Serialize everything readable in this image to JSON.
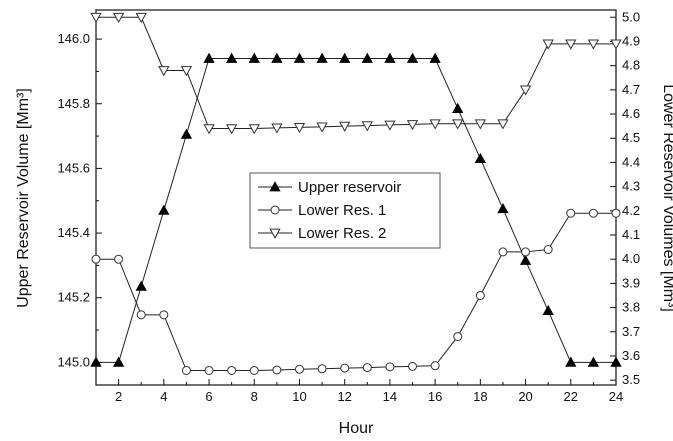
{
  "chart_data": {
    "type": "line",
    "x": [
      1,
      2,
      3,
      4,
      5,
      6,
      7,
      8,
      9,
      10,
      11,
      12,
      13,
      14,
      15,
      16,
      17,
      18,
      19,
      20,
      21,
      22,
      23,
      24
    ],
    "xlabel": "Hour",
    "xlim": [
      1,
      24
    ],
    "xticks": [
      2,
      4,
      6,
      8,
      10,
      12,
      14,
      16,
      18,
      20,
      22,
      24
    ],
    "ylabel_left": "Upper Reservoir Volume [Mm³]",
    "ylabel_right": "Lower Reservoir Volumes [Mm³]",
    "ylim_left": [
      144.93,
      146.09
    ],
    "yticks_left": [
      145.0,
      145.2,
      145.4,
      145.6,
      145.8,
      146.0
    ],
    "ylim_right": [
      3.48,
      5.03
    ],
    "yticks_right": [
      3.5,
      3.6,
      3.7,
      3.8,
      3.9,
      4.0,
      4.1,
      4.2,
      4.3,
      4.4,
      4.5,
      4.6,
      4.7,
      4.8,
      4.9,
      5.0
    ],
    "grid": false,
    "legend_position": "center",
    "series": [
      {
        "name": "Upper reservoir",
        "axis": "left",
        "marker": "triangle-up-filled",
        "values": [
          145.0,
          145.0,
          145.235,
          145.47,
          145.705,
          145.94,
          145.94,
          145.94,
          145.94,
          145.94,
          145.94,
          145.94,
          145.94,
          145.94,
          145.94,
          145.94,
          145.785,
          145.63,
          145.475,
          145.315,
          145.16,
          145.0,
          145.0,
          145.0
        ]
      },
      {
        "name": "Lower Res. 1",
        "axis": "right",
        "marker": "circle-open",
        "values": [
          4.0,
          4.0,
          3.77,
          3.77,
          3.54,
          3.54,
          3.54,
          3.54,
          3.542,
          3.545,
          3.547,
          3.55,
          3.552,
          3.555,
          3.557,
          3.56,
          3.68,
          3.85,
          4.03,
          4.03,
          4.04,
          4.19,
          4.19,
          4.19
        ]
      },
      {
        "name": "Lower Res. 2",
        "axis": "right",
        "marker": "triangle-down-open",
        "values": [
          5.0,
          5.0,
          5.0,
          4.78,
          4.78,
          4.54,
          4.54,
          4.54,
          4.543,
          4.545,
          4.547,
          4.55,
          4.552,
          4.555,
          4.557,
          4.56,
          4.56,
          4.56,
          4.56,
          4.7,
          4.89,
          4.89,
          4.89,
          4.89
        ]
      }
    ]
  }
}
